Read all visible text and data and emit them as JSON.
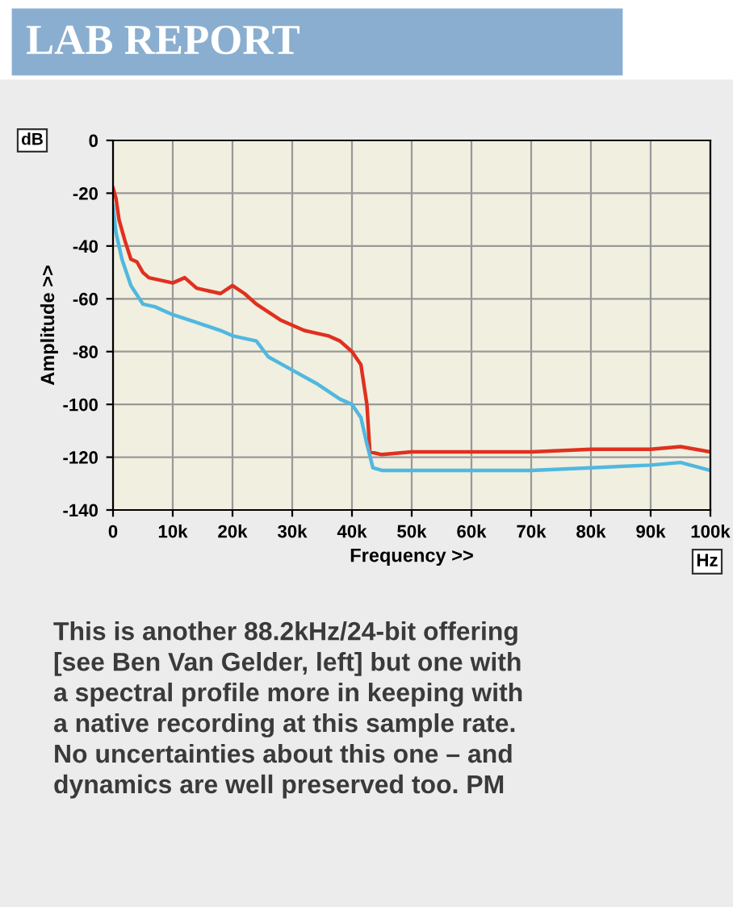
{
  "chart_data": {
    "type": "line",
    "title": "LAB REPORT",
    "xlabel": "Frequency >>",
    "ylabel": "Amplitude >>",
    "annotations": [
      "dB",
      "Hz",
      "This is another 88.2kHz/24-bit offering\n[see Ben Van Gelder, left] but one with\na spectral profile more in keeping with\na native recording at this sample rate.\nNo uncertainties about this one – and\ndynamics are well preserved too. PM"
    ],
    "xlim": [
      0,
      100000
    ],
    "ylim": [
      -140,
      0
    ],
    "xticks": [
      {
        "value": 0,
        "label": "0"
      },
      {
        "value": 10000,
        "label": "10k"
      },
      {
        "value": 20000,
        "label": "20k"
      },
      {
        "value": 30000,
        "label": "30k"
      },
      {
        "value": 40000,
        "label": "40k"
      },
      {
        "value": 50000,
        "label": "50k"
      },
      {
        "value": 60000,
        "label": "60k"
      },
      {
        "value": 70000,
        "label": "70k"
      },
      {
        "value": 80000,
        "label": "80k"
      },
      {
        "value": 90000,
        "label": "90k"
      },
      {
        "value": 100000,
        "label": "100k"
      }
    ],
    "yticks": [
      -140,
      -120,
      -100,
      -80,
      -60,
      -40,
      -20,
      0
    ],
    "grid": true,
    "line_style": "solid",
    "series": [
      {
        "color": "#e03020",
        "x": [
          0,
          500,
          1000,
          2000,
          3000,
          4000,
          5000,
          6000,
          8000,
          10000,
          12000,
          14000,
          16000,
          18000,
          20000,
          22000,
          24000,
          26000,
          28000,
          30000,
          32000,
          34000,
          36000,
          38000,
          40000,
          41500,
          42500,
          43000,
          45000,
          50000,
          60000,
          70000,
          80000,
          90000,
          95000,
          100000
        ],
        "values": [
          -18,
          -22,
          -30,
          -38,
          -45,
          -46,
          -50,
          -52,
          -53,
          -54,
          -52,
          -56,
          -57,
          -58,
          -55,
          -58,
          -62,
          -65,
          -68,
          -70,
          -72,
          -73,
          -74,
          -76,
          -80,
          -85,
          -100,
          -118,
          -119,
          -118,
          -118,
          -118,
          -117,
          -117,
          -116,
          -118
        ]
      },
      {
        "color": "#50b8e0",
        "x": [
          0,
          500,
          1500,
          3000,
          5000,
          7000,
          10000,
          14000,
          18000,
          20000,
          24000,
          26000,
          30000,
          34000,
          38000,
          40000,
          41500,
          42500,
          43500,
          45000,
          50000,
          60000,
          70000,
          80000,
          90000,
          95000,
          100000
        ],
        "values": [
          -25,
          -35,
          -45,
          -55,
          -62,
          -63,
          -66,
          -69,
          -72,
          -74,
          -76,
          -82,
          -87,
          -92,
          -98,
          -100,
          -105,
          -115,
          -124,
          -125,
          -125,
          -125,
          -125,
          -124,
          -123,
          -122,
          -125
        ]
      }
    ]
  }
}
